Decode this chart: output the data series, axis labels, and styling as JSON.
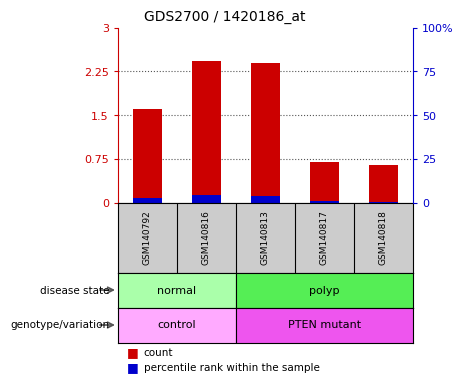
{
  "title": "GDS2700 / 1420186_at",
  "samples": [
    "GSM140792",
    "GSM140816",
    "GSM140813",
    "GSM140817",
    "GSM140818"
  ],
  "count_values": [
    1.6,
    2.42,
    2.4,
    0.7,
    0.65
  ],
  "percentile_values": [
    2.3,
    4.3,
    3.8,
    0.8,
    0.5
  ],
  "ylim_left": [
    0,
    3
  ],
  "ylim_right": [
    0,
    100
  ],
  "yticks_left": [
    0,
    0.75,
    1.5,
    2.25,
    3
  ],
  "yticks_left_labels": [
    "0",
    "0.75",
    "1.5",
    "2.25",
    "3"
  ],
  "yticks_right": [
    0,
    25,
    50,
    75,
    100
  ],
  "yticks_right_labels": [
    "0",
    "25",
    "50",
    "75",
    "100%"
  ],
  "color_count": "#cc0000",
  "color_percentile": "#0000cc",
  "color_left_axis": "#cc0000",
  "color_right_axis": "#0000cc",
  "bar_width": 0.5,
  "disease_state_labels": [
    "normal",
    "polyp"
  ],
  "disease_state_split": 2,
  "disease_state_colors": [
    "#aaffaa",
    "#55ee55"
  ],
  "genotype_labels": [
    "control",
    "PTEN mutant"
  ],
  "genotype_split": 2,
  "genotype_colors": [
    "#ffaaff",
    "#ee55ee"
  ],
  "row_label_disease": "disease state",
  "row_label_genotype": "genotype/variation",
  "legend_count": "count",
  "legend_percentile": "percentile rank within the sample",
  "dotted_grid_color": "#555555",
  "background_color": "#ffffff",
  "plot_bg_color": "#cccccc",
  "n_samples": 5
}
